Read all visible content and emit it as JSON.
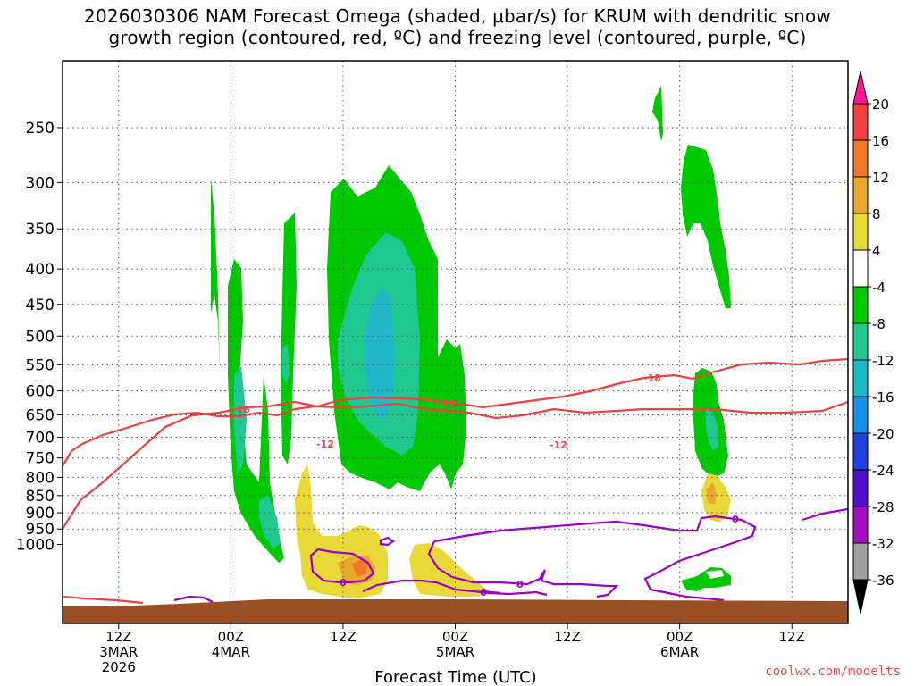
{
  "header": {
    "title_line1": "2026030306 NAM Forecast Omega (shaded, μbar/s) for KRUM with dendritic snow",
    "title_line2": "growth region (contoured, red, ºC) and freezing level (contoured, purple, ºC)"
  },
  "footer": {
    "credit": "coolwx.com/modelts"
  },
  "chart_data": {
    "type": "heatmap",
    "xlabel": "Forecast Time (UTC)",
    "x_range_hours": [
      0,
      84
    ],
    "x_ticks": [
      {
        "hour": 6,
        "lines": [
          "12Z",
          "3MAR",
          "2026"
        ]
      },
      {
        "hour": 18,
        "lines": [
          "00Z",
          "4MAR"
        ]
      },
      {
        "hour": 30,
        "lines": [
          "12Z"
        ]
      },
      {
        "hour": 42,
        "lines": [
          "00Z",
          "5MAR"
        ]
      },
      {
        "hour": 54,
        "lines": [
          "12Z"
        ]
      },
      {
        "hour": 66,
        "lines": [
          "00Z",
          "6MAR"
        ]
      },
      {
        "hour": 78,
        "lines": [
          "12Z"
        ]
      }
    ],
    "y_unit": "hPa",
    "y_ticks": [
      250,
      300,
      350,
      400,
      450,
      500,
      550,
      600,
      650,
      700,
      750,
      800,
      850,
      900,
      950,
      1000
    ],
    "grid": true,
    "colorbar": {
      "labels": [
        "20",
        "16",
        "12",
        "8",
        "4",
        "-4",
        "-8",
        "-12",
        "-16",
        "-20",
        "-24",
        "-28",
        "-32",
        "-36"
      ],
      "colors": [
        "#ff1493",
        "#f04040",
        "#f07828",
        "#e8a830",
        "#e8d838",
        "#ffffff",
        "#00c800",
        "#20c890",
        "#20b8c8",
        "#1890e8",
        "#2040e0",
        "#5010c8",
        "#a010c0",
        "#a0a0a0",
        "#000000"
      ]
    },
    "contours": {
      "red_dgz_celsius": [
        "-18",
        "-12"
      ],
      "purple_freezing_celsius": [
        "0"
      ]
    },
    "colors": {
      "red_contour": "#f04040",
      "purple_contour": "#9a00c8",
      "ground": "#9a5024"
    }
  }
}
